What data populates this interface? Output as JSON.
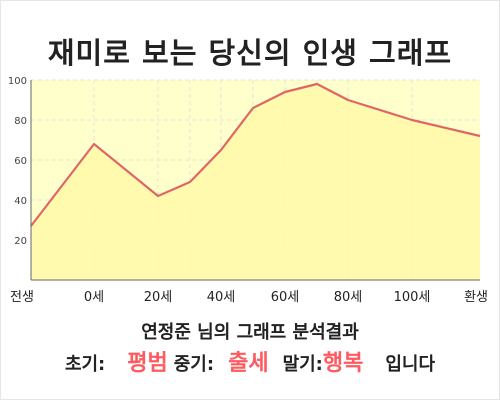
{
  "header": {
    "title": "재미로 보는 당신의 인생 그래프"
  },
  "chart_data": {
    "type": "area",
    "x_tick_labels": [
      "전생",
      "0세",
      "20세",
      "40세",
      "60세",
      "80세",
      "100세",
      "환생"
    ],
    "y_ticks": [
      20,
      40,
      60,
      80,
      100
    ],
    "ylim": [
      0,
      100
    ],
    "grid": true,
    "series": [
      {
        "x": [
          "전생",
          "0세",
          "20세",
          "30세",
          "40세",
          "50세",
          "60세",
          "70세",
          "80세",
          "100세",
          "환생"
        ],
        "values": [
          27,
          68,
          42,
          49,
          65,
          86,
          94,
          98,
          90,
          80,
          72
        ]
      }
    ],
    "colors": {
      "line": "#e06666",
      "fill": "#ffffcc",
      "grid": "#e4e4d4"
    }
  },
  "summary": {
    "title": "연정준 님의 그래프 분석결과",
    "early_label": "초기:",
    "early_value": "평범",
    "middle_label": "중기:",
    "middle_value": "출세",
    "late_label": "말기:",
    "late_value": "행복",
    "ending": "입니다"
  }
}
